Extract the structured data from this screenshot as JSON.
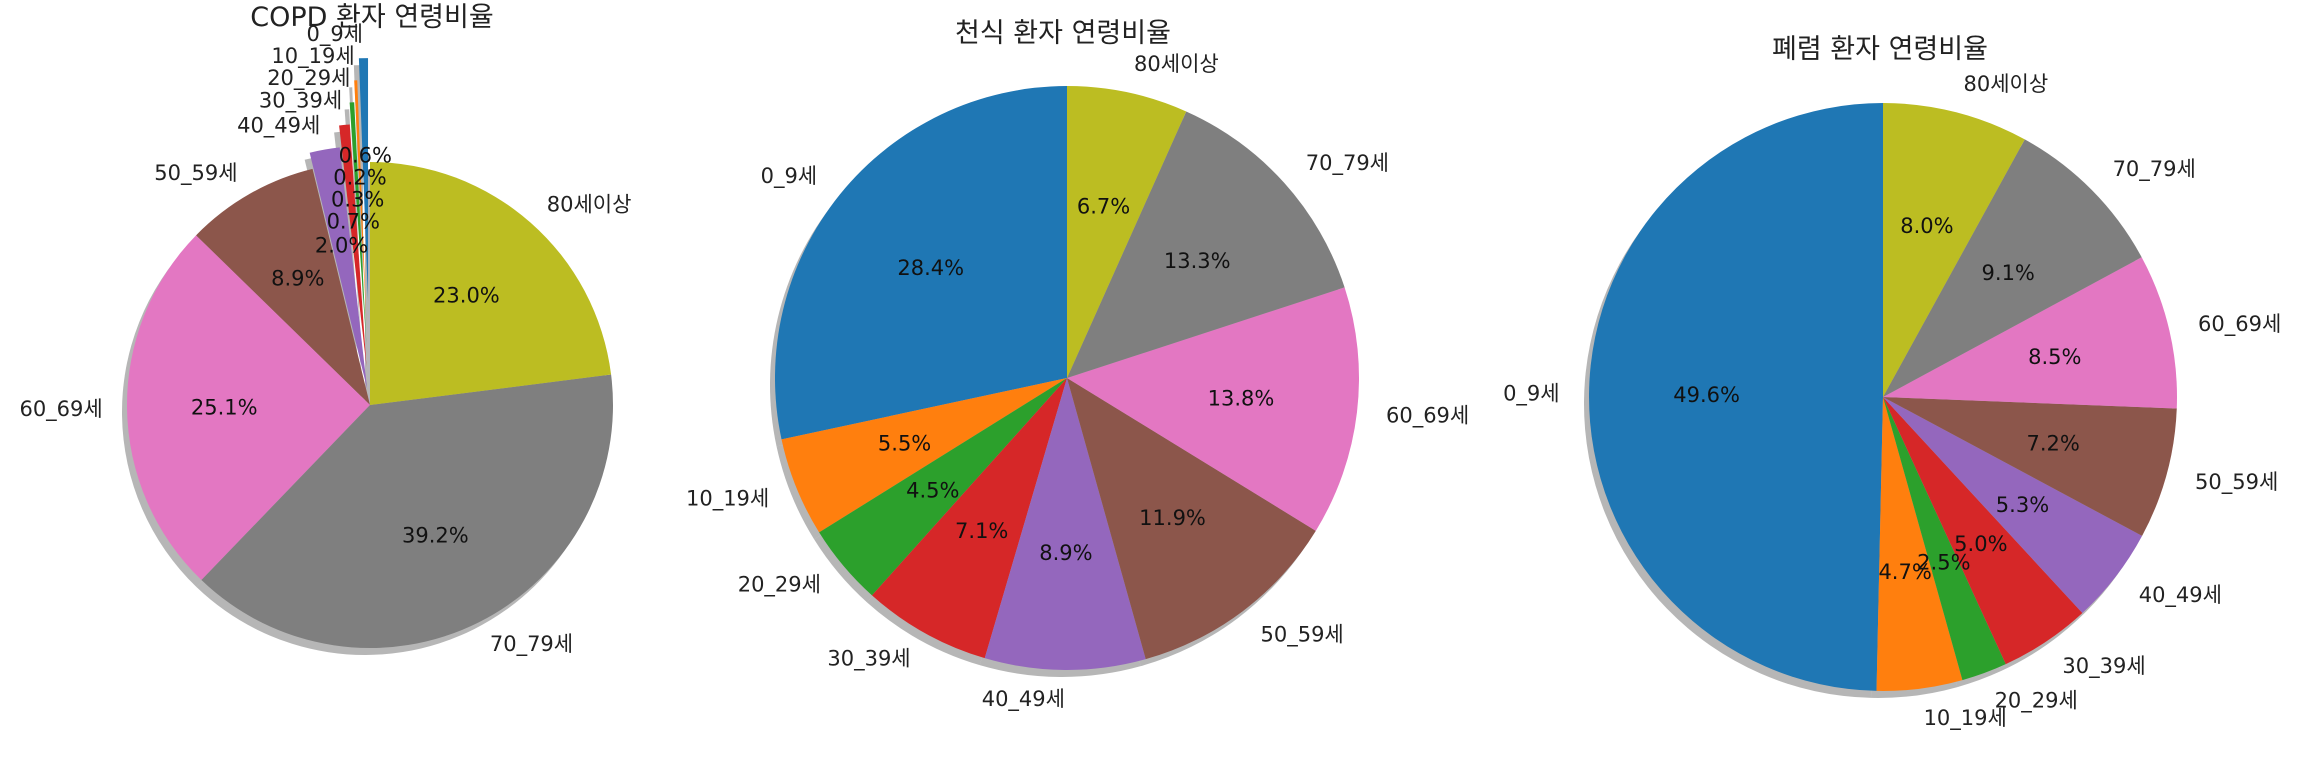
{
  "colors": [
    "#1f77b4",
    "#ff7f0e",
    "#2ca02c",
    "#d62728",
    "#9467bd",
    "#8c564b",
    "#e377c2",
    "#7f7f7f",
    "#bcbd22"
  ],
  "chart_data": [
    {
      "type": "pie",
      "title": "COPD 환자 연령비율",
      "categories": [
        "0_9세",
        "10_19세",
        "20_29세",
        "30_39세",
        "40_49세",
        "50_59세",
        "60_69세",
        "70_79세",
        "80세이상"
      ],
      "values": [
        0.6,
        0.2,
        0.3,
        0.7,
        2.0,
        8.9,
        25.1,
        39.2,
        23.0
      ],
      "pct_labels": [
        "0.6%",
        "0.2%",
        "0.3%",
        "0.7%",
        "2.0%",
        "8.9%",
        "25.1%",
        "39.2%",
        "23.0%"
      ],
      "explode": [
        0.95,
        0.75,
        0.55,
        0.35,
        0.15,
        0,
        0,
        0,
        0
      ],
      "shadow": true,
      "start_angle_deg": 90
    },
    {
      "type": "pie",
      "title": "천식 환자 연령비율",
      "categories": [
        "0_9세",
        "10_19세",
        "20_29세",
        "30_39세",
        "40_49세",
        "50_59세",
        "60_69세",
        "70_79세",
        "80세이상"
      ],
      "values": [
        28.4,
        5.5,
        4.5,
        7.1,
        8.9,
        11.9,
        13.8,
        13.3,
        6.7
      ],
      "pct_labels": [
        "28.4%",
        "5.5%",
        "4.5%",
        "7.1%",
        "8.9%",
        "11.9%",
        "13.8%",
        "13.3%",
        "6.7%"
      ],
      "shadow": true,
      "start_angle_deg": 90
    },
    {
      "type": "pie",
      "title": "폐렴 환자 연령비율",
      "categories": [
        "0_9세",
        "10_19세",
        "20_29세",
        "30_39세",
        "40_49세",
        "50_59세",
        "60_69세",
        "70_79세",
        "80세이상"
      ],
      "values": [
        49.6,
        4.7,
        2.5,
        5.0,
        5.3,
        7.2,
        8.5,
        9.1,
        8.0
      ],
      "pct_labels": [
        "49.6%",
        "4.7%",
        "2.5%",
        "5.0%",
        "5.3%",
        "7.2%",
        "8.5%",
        "9.1%",
        "8.0%"
      ],
      "shadow": true,
      "start_angle_deg": 90
    }
  ]
}
